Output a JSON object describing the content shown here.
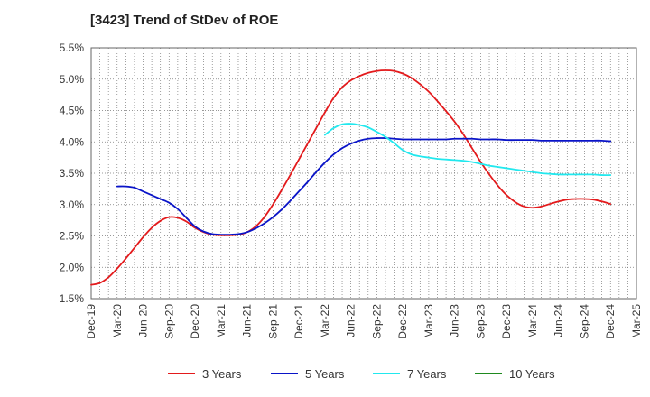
{
  "chart_data": {
    "type": "line",
    "title": "[3423]  Trend of StDev of ROE",
    "x_tick_labels": [
      "Dec-19",
      "Mar-20",
      "Jun-20",
      "Sep-20",
      "Dec-20",
      "Mar-21",
      "Jun-21",
      "Sep-21",
      "Dec-21",
      "Mar-22",
      "Jun-22",
      "Sep-22",
      "Dec-22",
      "Mar-23",
      "Jun-23",
      "Sep-23",
      "Dec-23",
      "Mar-24",
      "Jun-24",
      "Sep-24",
      "Dec-24",
      "Mar-25"
    ],
    "y_tick_labels": [
      "1.5%",
      "2.0%",
      "2.5%",
      "3.0%",
      "3.5%",
      "4.0%",
      "4.5%",
      "5.0%",
      "5.5%"
    ],
    "ylim": [
      1.5,
      5.5
    ],
    "grid": true,
    "legend_position": "bottom",
    "series": [
      {
        "name": "3 Years",
        "color": "#e31a1c",
        "x": [
          "Dec-19",
          "Jan-20",
          "Feb-20",
          "Mar-20",
          "Apr-20",
          "May-20",
          "Jun-20",
          "Jul-20",
          "Aug-20",
          "Sep-20",
          "Oct-20",
          "Nov-20",
          "Dec-20",
          "Jan-21",
          "Feb-21",
          "Mar-21",
          "Apr-21",
          "May-21",
          "Jun-21",
          "Jul-21",
          "Aug-21",
          "Sep-21",
          "Oct-21",
          "Nov-21",
          "Dec-21",
          "Jan-22",
          "Feb-22",
          "Mar-22",
          "Apr-22",
          "May-22",
          "Jun-22",
          "Jul-22",
          "Aug-22",
          "Sep-22",
          "Oct-22",
          "Nov-22",
          "Dec-22",
          "Jan-23",
          "Feb-23",
          "Mar-23",
          "Apr-23",
          "May-23",
          "Jun-23",
          "Jul-23",
          "Aug-23",
          "Sep-23",
          "Oct-23",
          "Nov-23",
          "Dec-23",
          "Jan-24",
          "Feb-24",
          "Mar-24",
          "Apr-24",
          "May-24",
          "Jun-24",
          "Jul-24",
          "Aug-24",
          "Sep-24",
          "Oct-24",
          "Nov-24",
          "Dec-24"
        ],
        "values": [
          1.72,
          1.75,
          1.84,
          1.98,
          2.14,
          2.31,
          2.48,
          2.63,
          2.74,
          2.8,
          2.79,
          2.73,
          2.63,
          2.56,
          2.52,
          2.51,
          2.51,
          2.52,
          2.56,
          2.65,
          2.8,
          3.0,
          3.23,
          3.47,
          3.72,
          3.97,
          4.22,
          4.47,
          4.7,
          4.87,
          4.98,
          5.05,
          5.1,
          5.13,
          5.14,
          5.13,
          5.09,
          5.02,
          4.92,
          4.8,
          4.65,
          4.49,
          4.32,
          4.12,
          3.9,
          3.68,
          3.48,
          3.3,
          3.15,
          3.04,
          2.97,
          2.95,
          2.97,
          3.01,
          3.05,
          3.08,
          3.09,
          3.09,
          3.08,
          3.05,
          3.01
        ]
      },
      {
        "name": "5 Years",
        "color": "#0a14c8",
        "x": [
          "Mar-20",
          "Apr-20",
          "May-20",
          "Jun-20",
          "Jul-20",
          "Aug-20",
          "Sep-20",
          "Oct-20",
          "Nov-20",
          "Dec-20",
          "Jan-21",
          "Feb-21",
          "Mar-21",
          "Apr-21",
          "May-21",
          "Jun-21",
          "Jul-21",
          "Aug-21",
          "Sep-21",
          "Oct-21",
          "Nov-21",
          "Dec-21",
          "Jan-22",
          "Feb-22",
          "Mar-22",
          "Apr-22",
          "May-22",
          "Jun-22",
          "Jul-22",
          "Aug-22",
          "Sep-22",
          "Oct-22",
          "Nov-22",
          "Dec-22",
          "Jan-23",
          "Feb-23",
          "Mar-23",
          "Apr-23",
          "May-23",
          "Jun-23",
          "Jul-23",
          "Aug-23",
          "Sep-23",
          "Oct-23",
          "Nov-23",
          "Dec-23",
          "Jan-24",
          "Feb-24",
          "Mar-24",
          "Apr-24",
          "May-24",
          "Jun-24",
          "Jul-24",
          "Aug-24",
          "Sep-24",
          "Oct-24",
          "Nov-24",
          "Dec-24"
        ],
        "values": [
          3.29,
          3.29,
          3.27,
          3.21,
          3.15,
          3.09,
          3.03,
          2.93,
          2.79,
          2.65,
          2.57,
          2.53,
          2.52,
          2.52,
          2.53,
          2.56,
          2.62,
          2.7,
          2.8,
          2.92,
          3.06,
          3.21,
          3.36,
          3.52,
          3.67,
          3.8,
          3.9,
          3.97,
          4.02,
          4.05,
          4.06,
          4.06,
          4.05,
          4.04,
          4.04,
          4.04,
          4.04,
          4.04,
          4.04,
          4.05,
          4.05,
          4.05,
          4.04,
          4.04,
          4.04,
          4.03,
          4.03,
          4.03,
          4.03,
          4.02,
          4.02,
          4.02,
          4.02,
          4.02,
          4.02,
          4.02,
          4.02,
          4.01
        ]
      },
      {
        "name": "7 Years",
        "color": "#22e8ee",
        "x": [
          "Mar-22",
          "Apr-22",
          "May-22",
          "Jun-22",
          "Jul-22",
          "Aug-22",
          "Sep-22",
          "Oct-22",
          "Nov-22",
          "Dec-22",
          "Jan-23",
          "Feb-23",
          "Mar-23",
          "Apr-23",
          "May-23",
          "Jun-23",
          "Jul-23",
          "Aug-23",
          "Sep-23",
          "Oct-23",
          "Nov-23",
          "Dec-23",
          "Jan-24",
          "Feb-24",
          "Mar-24",
          "Apr-24",
          "May-24",
          "Jun-24",
          "Jul-24",
          "Aug-24",
          "Sep-24",
          "Oct-24",
          "Nov-24",
          "Dec-24"
        ],
        "values": [
          4.11,
          4.22,
          4.28,
          4.29,
          4.27,
          4.23,
          4.16,
          4.08,
          3.98,
          3.87,
          3.8,
          3.77,
          3.75,
          3.73,
          3.72,
          3.71,
          3.7,
          3.68,
          3.65,
          3.62,
          3.6,
          3.58,
          3.56,
          3.54,
          3.52,
          3.5,
          3.49,
          3.48,
          3.48,
          3.48,
          3.48,
          3.48,
          3.47,
          3.47
        ]
      },
      {
        "name": "10 Years",
        "color": "#1f8a1f",
        "x": [],
        "values": []
      }
    ]
  }
}
